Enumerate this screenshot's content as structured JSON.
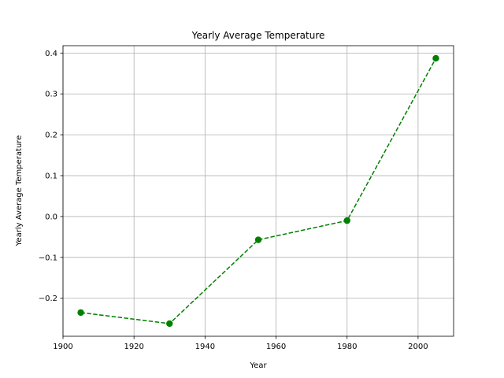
{
  "chart_data": {
    "type": "line",
    "title": "Yearly Average Temperature",
    "xlabel": "Year",
    "ylabel": "Yearly Average Temperature",
    "x": [
      1905,
      1930,
      1955,
      1980,
      2005
    ],
    "series": [
      {
        "values": [
          -0.235,
          -0.262,
          -0.057,
          -0.01,
          0.387
        ]
      }
    ],
    "xlim": [
      1900,
      2010
    ],
    "ylim": [
      -0.293,
      0.418
    ],
    "xticks": [
      1900,
      1920,
      1940,
      1960,
      1980,
      2000
    ],
    "xtick_labels": [
      "1900",
      "1920",
      "1940",
      "1960",
      "1980",
      "2000"
    ],
    "yticks": [
      -0.2,
      -0.1,
      0.0,
      0.1,
      0.2,
      0.3,
      0.4
    ],
    "ytick_labels": [
      "−0.2",
      "−0.1",
      "0.0",
      "0.1",
      "0.2",
      "0.3",
      "0.4"
    ],
    "grid": true,
    "line_style": "dashed",
    "marker": "circle",
    "colors": {
      "line": "#008000",
      "grid": "#b0b0b0",
      "axes": "#000000"
    }
  }
}
